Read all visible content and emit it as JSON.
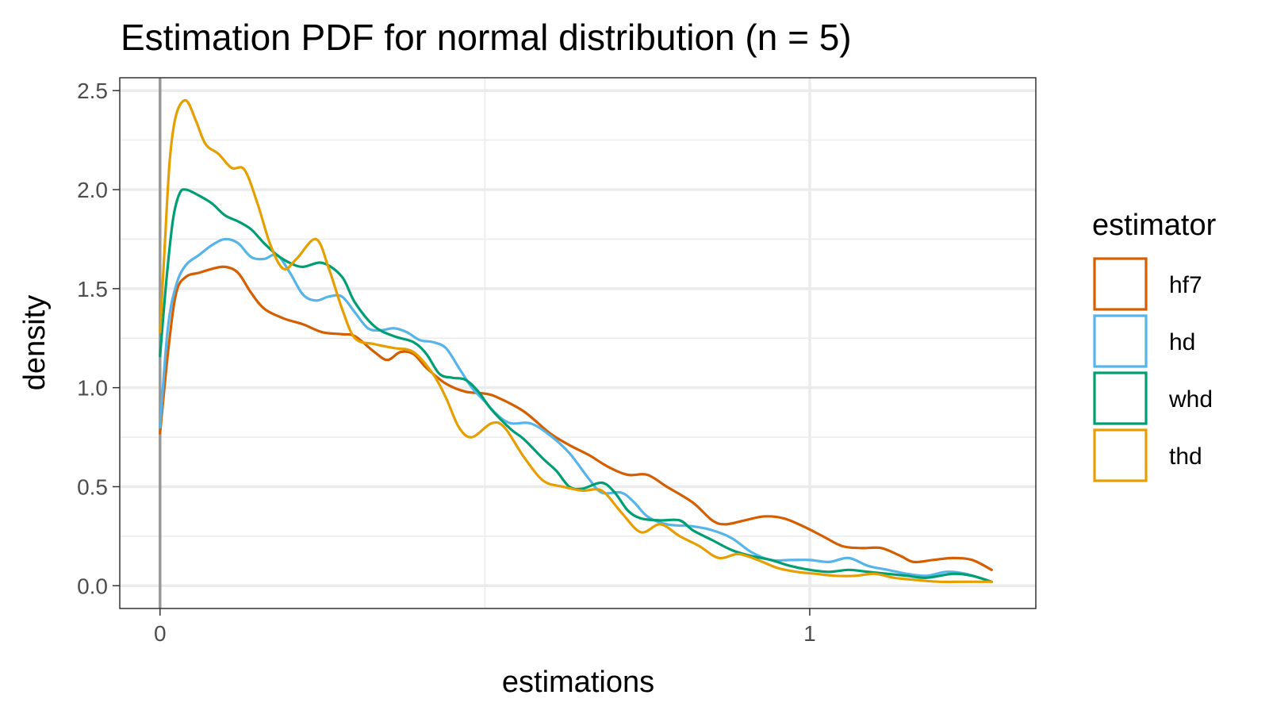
{
  "chart_data": {
    "type": "line",
    "title": "Estimation PDF for normal distribution (n = 5)",
    "xlabel": "estimations",
    "ylabel": "density",
    "xlim": [
      -0.062,
      1.348
    ],
    "ylim": [
      -0.115,
      2.565
    ],
    "x_major_ticks": [
      0,
      1
    ],
    "x_tick_labels": [
      "0",
      "1"
    ],
    "x_minor_ticks": [
      0.5
    ],
    "y_major_ticks": [
      0,
      0.5,
      1,
      1.5,
      2,
      2.5
    ],
    "y_tick_labels": [
      "0.0",
      "0.5",
      "1.0",
      "1.5",
      "2.0",
      "2.5"
    ],
    "y_minor_ticks": [
      0.25,
      0.75,
      1.25,
      1.75,
      2.25
    ],
    "vline_x": 0,
    "grid": true,
    "legend": {
      "title": "estimator",
      "position": "right"
    },
    "series": [
      {
        "name": "hf7",
        "color": "#D55E00",
        "points": [
          [
            0,
            0.77
          ],
          [
            0.013,
            1.2
          ],
          [
            0.025,
            1.48
          ],
          [
            0.04,
            1.56
          ],
          [
            0.06,
            1.58
          ],
          [
            0.08,
            1.6
          ],
          [
            0.1,
            1.61
          ],
          [
            0.12,
            1.58
          ],
          [
            0.14,
            1.48
          ],
          [
            0.16,
            1.4
          ],
          [
            0.19,
            1.35
          ],
          [
            0.22,
            1.32
          ],
          [
            0.25,
            1.28
          ],
          [
            0.28,
            1.27
          ],
          [
            0.3,
            1.26
          ],
          [
            0.33,
            1.18
          ],
          [
            0.35,
            1.14
          ],
          [
            0.37,
            1.18
          ],
          [
            0.39,
            1.17
          ],
          [
            0.41,
            1.1
          ],
          [
            0.44,
            1.02
          ],
          [
            0.47,
            0.98
          ],
          [
            0.5,
            0.97
          ],
          [
            0.52,
            0.95
          ],
          [
            0.56,
            0.88
          ],
          [
            0.6,
            0.77
          ],
          [
            0.63,
            0.71
          ],
          [
            0.66,
            0.66
          ],
          [
            0.69,
            0.6
          ],
          [
            0.72,
            0.56
          ],
          [
            0.75,
            0.56
          ],
          [
            0.78,
            0.5
          ],
          [
            0.82,
            0.42
          ],
          [
            0.85,
            0.33
          ],
          [
            0.87,
            0.31
          ],
          [
            0.9,
            0.33
          ],
          [
            0.93,
            0.35
          ],
          [
            0.96,
            0.34
          ],
          [
            0.99,
            0.3
          ],
          [
            1.02,
            0.25
          ],
          [
            1.05,
            0.2
          ],
          [
            1.08,
            0.19
          ],
          [
            1.11,
            0.19
          ],
          [
            1.14,
            0.15
          ],
          [
            1.16,
            0.12
          ],
          [
            1.19,
            0.13
          ],
          [
            1.22,
            0.14
          ],
          [
            1.25,
            0.13
          ],
          [
            1.28,
            0.08
          ]
        ]
      },
      {
        "name": "hd",
        "color": "#56B4E9",
        "points": [
          [
            0,
            0.8
          ],
          [
            0.012,
            1.3
          ],
          [
            0.025,
            1.52
          ],
          [
            0.04,
            1.62
          ],
          [
            0.06,
            1.67
          ],
          [
            0.08,
            1.72
          ],
          [
            0.1,
            1.75
          ],
          [
            0.12,
            1.73
          ],
          [
            0.14,
            1.66
          ],
          [
            0.16,
            1.65
          ],
          [
            0.18,
            1.67
          ],
          [
            0.2,
            1.58
          ],
          [
            0.22,
            1.47
          ],
          [
            0.24,
            1.44
          ],
          [
            0.26,
            1.46
          ],
          [
            0.28,
            1.46
          ],
          [
            0.3,
            1.38
          ],
          [
            0.32,
            1.3
          ],
          [
            0.34,
            1.29
          ],
          [
            0.36,
            1.3
          ],
          [
            0.38,
            1.28
          ],
          [
            0.4,
            1.24
          ],
          [
            0.42,
            1.23
          ],
          [
            0.44,
            1.2
          ],
          [
            0.46,
            1.1
          ],
          [
            0.48,
            1.0
          ],
          [
            0.5,
            0.93
          ],
          [
            0.52,
            0.86
          ],
          [
            0.54,
            0.82
          ],
          [
            0.57,
            0.82
          ],
          [
            0.6,
            0.76
          ],
          [
            0.63,
            0.67
          ],
          [
            0.66,
            0.54
          ],
          [
            0.68,
            0.47
          ],
          [
            0.71,
            0.47
          ],
          [
            0.73,
            0.42
          ],
          [
            0.75,
            0.35
          ],
          [
            0.78,
            0.31
          ],
          [
            0.82,
            0.3
          ],
          [
            0.85,
            0.28
          ],
          [
            0.88,
            0.24
          ],
          [
            0.91,
            0.17
          ],
          [
            0.94,
            0.13
          ],
          [
            0.97,
            0.13
          ],
          [
            1.0,
            0.13
          ],
          [
            1.03,
            0.12
          ],
          [
            1.06,
            0.14
          ],
          [
            1.09,
            0.1
          ],
          [
            1.12,
            0.08
          ],
          [
            1.15,
            0.06
          ],
          [
            1.18,
            0.05
          ],
          [
            1.21,
            0.07
          ],
          [
            1.24,
            0.06
          ],
          [
            1.28,
            0.02
          ]
        ]
      },
      {
        "name": "whd",
        "color": "#009E73",
        "points": [
          [
            0,
            1.16
          ],
          [
            0.01,
            1.55
          ],
          [
            0.02,
            1.85
          ],
          [
            0.03,
            1.98
          ],
          [
            0.04,
            2.0
          ],
          [
            0.06,
            1.97
          ],
          [
            0.08,
            1.93
          ],
          [
            0.1,
            1.87
          ],
          [
            0.12,
            1.84
          ],
          [
            0.14,
            1.8
          ],
          [
            0.16,
            1.73
          ],
          [
            0.18,
            1.67
          ],
          [
            0.2,
            1.63
          ],
          [
            0.22,
            1.61
          ],
          [
            0.25,
            1.63
          ],
          [
            0.28,
            1.56
          ],
          [
            0.3,
            1.43
          ],
          [
            0.33,
            1.31
          ],
          [
            0.36,
            1.26
          ],
          [
            0.39,
            1.23
          ],
          [
            0.41,
            1.17
          ],
          [
            0.43,
            1.07
          ],
          [
            0.45,
            1.05
          ],
          [
            0.47,
            1.04
          ],
          [
            0.49,
            0.98
          ],
          [
            0.51,
            0.89
          ],
          [
            0.54,
            0.79
          ],
          [
            0.56,
            0.74
          ],
          [
            0.59,
            0.64
          ],
          [
            0.61,
            0.58
          ],
          [
            0.63,
            0.5
          ],
          [
            0.65,
            0.49
          ],
          [
            0.68,
            0.52
          ],
          [
            0.7,
            0.47
          ],
          [
            0.72,
            0.38
          ],
          [
            0.74,
            0.34
          ],
          [
            0.77,
            0.33
          ],
          [
            0.8,
            0.33
          ],
          [
            0.82,
            0.28
          ],
          [
            0.85,
            0.23
          ],
          [
            0.88,
            0.18
          ],
          [
            0.91,
            0.15
          ],
          [
            0.94,
            0.13
          ],
          [
            0.97,
            0.1
          ],
          [
            1.0,
            0.08
          ],
          [
            1.03,
            0.07
          ],
          [
            1.06,
            0.08
          ],
          [
            1.09,
            0.07
          ],
          [
            1.12,
            0.06
          ],
          [
            1.15,
            0.05
          ],
          [
            1.18,
            0.04
          ],
          [
            1.22,
            0.06
          ],
          [
            1.25,
            0.05
          ],
          [
            1.28,
            0.02
          ]
        ]
      },
      {
        "name": "thd",
        "color": "#E69F00",
        "points": [
          [
            0,
            1.28
          ],
          [
            0.007,
            1.7
          ],
          [
            0.015,
            2.15
          ],
          [
            0.025,
            2.38
          ],
          [
            0.04,
            2.45
          ],
          [
            0.055,
            2.35
          ],
          [
            0.07,
            2.23
          ],
          [
            0.09,
            2.18
          ],
          [
            0.11,
            2.11
          ],
          [
            0.13,
            2.1
          ],
          [
            0.15,
            1.93
          ],
          [
            0.17,
            1.72
          ],
          [
            0.19,
            1.6
          ],
          [
            0.21,
            1.65
          ],
          [
            0.24,
            1.75
          ],
          [
            0.26,
            1.6
          ],
          [
            0.28,
            1.4
          ],
          [
            0.3,
            1.25
          ],
          [
            0.33,
            1.22
          ],
          [
            0.36,
            1.2
          ],
          [
            0.39,
            1.18
          ],
          [
            0.42,
            1.07
          ],
          [
            0.44,
            0.95
          ],
          [
            0.46,
            0.8
          ],
          [
            0.48,
            0.75
          ],
          [
            0.51,
            0.82
          ],
          [
            0.53,
            0.8
          ],
          [
            0.56,
            0.65
          ],
          [
            0.59,
            0.53
          ],
          [
            0.62,
            0.5
          ],
          [
            0.65,
            0.48
          ],
          [
            0.68,
            0.48
          ],
          [
            0.71,
            0.37
          ],
          [
            0.74,
            0.27
          ],
          [
            0.77,
            0.31
          ],
          [
            0.8,
            0.25
          ],
          [
            0.83,
            0.2
          ],
          [
            0.86,
            0.14
          ],
          [
            0.89,
            0.16
          ],
          [
            0.92,
            0.13
          ],
          [
            0.95,
            0.09
          ],
          [
            0.98,
            0.07
          ],
          [
            1.01,
            0.06
          ],
          [
            1.04,
            0.05
          ],
          [
            1.07,
            0.05
          ],
          [
            1.1,
            0.06
          ],
          [
            1.13,
            0.04
          ],
          [
            1.16,
            0.03
          ],
          [
            1.2,
            0.02
          ],
          [
            1.24,
            0.02
          ],
          [
            1.28,
            0.02
          ]
        ]
      }
    ]
  }
}
